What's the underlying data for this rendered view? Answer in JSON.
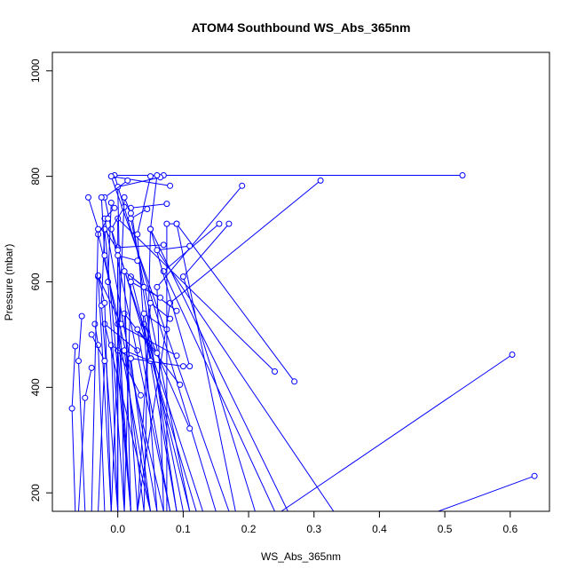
{
  "chart_data": {
    "type": "line",
    "title": "ATOM4 Southbound WS_Abs_365nm",
    "xlabel": "WS_Abs_365nm",
    "ylabel": "Pressure (mbar)",
    "xlim": [
      -0.1,
      0.66
    ],
    "ylim": [
      1035,
      165
    ],
    "y_reversed": true,
    "x_ticks": [
      "0.0",
      "0.1",
      "0.2",
      "0.3",
      "0.4",
      "0.5",
      "0.6"
    ],
    "y_ticks": [
      "200",
      "400",
      "600",
      "800",
      "1000"
    ],
    "grid": false,
    "series_color": "#0000ff",
    "series": [
      {
        "values": [
          [
            0.637,
            232
          ],
          [
            0.49,
            165
          ],
          [
            0.14,
            165
          ]
        ]
      },
      {
        "values": [
          [
            0.603,
            462
          ],
          [
            0.25,
            165
          ]
        ]
      },
      {
        "values": [
          [
            0.527,
            802
          ],
          [
            0.07,
            802
          ],
          [
            -0.005,
            802
          ],
          [
            0.15,
            165
          ]
        ]
      },
      {
        "values": [
          [
            0.31,
            792
          ],
          [
            0.08,
            560
          ],
          [
            0.03,
            165
          ]
        ]
      },
      {
        "values": [
          [
            0.27,
            411
          ],
          [
            0.09,
            710
          ],
          [
            0.18,
            165
          ]
        ]
      },
      {
        "values": [
          [
            0.24,
            430
          ],
          [
            0.0,
            720
          ],
          [
            0.0,
            165
          ]
        ]
      },
      {
        "values": [
          [
            0.19,
            782
          ],
          [
            0.06,
            590
          ],
          [
            0.07,
            165
          ]
        ]
      },
      {
        "values": [
          [
            0.17,
            710
          ],
          [
            0.1,
            610
          ],
          [
            0.21,
            165
          ]
        ]
      },
      {
        "values": [
          [
            0.155,
            710
          ],
          [
            0.07,
            620
          ],
          [
            0.24,
            165
          ]
        ]
      },
      {
        "values": [
          [
            0.11,
            322
          ],
          [
            0.04,
            520
          ],
          [
            0.09,
            165
          ]
        ]
      },
      {
        "values": [
          [
            0.11,
            440
          ],
          [
            0.05,
            700
          ],
          [
            0.26,
            165
          ]
        ]
      },
      {
        "values": [
          [
            0.095,
            405
          ],
          [
            0.01,
            540
          ],
          [
            0.03,
            165
          ]
        ]
      },
      {
        "values": [
          [
            0.09,
            545
          ],
          [
            0.02,
            610
          ],
          [
            0.11,
            165
          ]
        ]
      },
      {
        "values": [
          [
            0.11,
            668
          ],
          [
            0.06,
            660
          ],
          [
            0.33,
            165
          ]
        ]
      },
      {
        "values": [
          [
            0.09,
            460
          ],
          [
            0.0,
            520
          ],
          [
            0.02,
            165
          ]
        ]
      },
      {
        "values": [
          [
            0.07,
            670
          ],
          [
            0.0,
            665
          ],
          [
            0.12,
            165
          ]
        ]
      },
      {
        "values": [
          [
            0.08,
            782
          ],
          [
            -0.01,
            800
          ],
          [
            0.17,
            165
          ]
        ]
      },
      {
        "values": [
          [
            0.075,
            748
          ],
          [
            0.02,
            740
          ],
          [
            0.09,
            165
          ]
        ]
      },
      {
        "values": [
          [
            0.065,
            798
          ],
          [
            0.0,
            780
          ],
          [
            0.01,
            165
          ]
        ]
      },
      {
        "values": [
          [
            0.06,
            802
          ],
          [
            0.05,
            700
          ],
          [
            0.04,
            165
          ]
        ]
      },
      {
        "values": [
          [
            0.05,
            800
          ],
          [
            0.03,
            690
          ],
          [
            0.06,
            165
          ]
        ]
      },
      {
        "values": [
          [
            0.045,
            738
          ],
          [
            0.02,
            720
          ],
          [
            0.11,
            165
          ]
        ]
      },
      {
        "values": [
          [
            0.035,
            385
          ],
          [
            0.0,
            470
          ],
          [
            0.02,
            165
          ]
        ]
      },
      {
        "values": [
          [
            0.03,
            470
          ],
          [
            -0.02,
            520
          ],
          [
            0.05,
            165
          ]
        ]
      },
      {
        "values": [
          [
            0.02,
            455
          ],
          [
            -0.01,
            480
          ],
          [
            0.0,
            165
          ]
        ]
      },
      {
        "values": [
          [
            0.015,
            792
          ],
          [
            -0.02,
            760
          ],
          [
            0.08,
            165
          ]
        ]
      },
      {
        "values": [
          [
            0.01,
            742
          ],
          [
            -0.01,
            700
          ],
          [
            0.13,
            165
          ]
        ]
      },
      {
        "values": [
          [
            0.005,
            520
          ],
          [
            -0.03,
            610
          ],
          [
            -0.01,
            165
          ]
        ]
      },
      {
        "values": [
          [
            0.0,
            660
          ],
          [
            -0.02,
            700
          ],
          [
            0.02,
            165
          ]
        ]
      },
      {
        "values": [
          [
            -0.005,
            740
          ],
          [
            -0.02,
            720
          ],
          [
            0.06,
            165
          ]
        ]
      },
      {
        "values": [
          [
            -0.01,
            750
          ],
          [
            -0.015,
            600
          ],
          [
            0.01,
            165
          ]
        ]
      },
      {
        "values": [
          [
            -0.015,
            720
          ],
          [
            -0.03,
            690
          ],
          [
            0.07,
            165
          ]
        ]
      },
      {
        "values": [
          [
            -0.02,
            700
          ],
          [
            -0.025,
            555
          ],
          [
            0.0,
            165
          ]
        ]
      },
      {
        "values": [
          [
            -0.025,
            760
          ],
          [
            -0.02,
            650
          ],
          [
            0.05,
            165
          ]
        ]
      },
      {
        "values": [
          [
            -0.03,
            612
          ],
          [
            -0.02,
            560
          ],
          [
            -0.01,
            165
          ]
        ]
      },
      {
        "values": [
          [
            -0.035,
            520
          ],
          [
            -0.03,
            480
          ],
          [
            -0.02,
            165
          ]
        ]
      },
      {
        "values": [
          [
            -0.04,
            500
          ],
          [
            -0.02,
            450
          ],
          [
            -0.03,
            165
          ]
        ]
      },
      {
        "values": [
          [
            -0.045,
            760
          ],
          [
            -0.03,
            700
          ],
          [
            -0.04,
            165
          ]
        ]
      },
      {
        "values": [
          [
            -0.04,
            437
          ],
          [
            -0.05,
            380
          ],
          [
            -0.06,
            165
          ]
        ]
      },
      {
        "values": [
          [
            -0.055,
            535
          ],
          [
            -0.06,
            450
          ],
          [
            -0.05,
            165
          ]
        ]
      },
      {
        "values": [
          [
            -0.065,
            478
          ],
          [
            -0.07,
            360
          ],
          [
            -0.065,
            165
          ]
        ]
      },
      {
        "values": [
          [
            0.05,
            450
          ],
          [
            0.01,
            470
          ],
          [
            0.04,
            165
          ]
        ]
      },
      {
        "values": [
          [
            0.06,
            465
          ],
          [
            0.03,
            510
          ],
          [
            0.08,
            165
          ]
        ]
      },
      {
        "values": [
          [
            0.075,
            510
          ],
          [
            0.04,
            540
          ],
          [
            0.1,
            165
          ]
        ]
      },
      {
        "values": [
          [
            0.08,
            530
          ],
          [
            0.05,
            560
          ],
          [
            0.03,
            165
          ]
        ]
      },
      {
        "values": [
          [
            0.065,
            570
          ],
          [
            0.02,
            600
          ],
          [
            0.01,
            165
          ]
        ]
      },
      {
        "values": [
          [
            0.04,
            590
          ],
          [
            0.01,
            620
          ],
          [
            0.02,
            165
          ]
        ]
      },
      {
        "values": [
          [
            0.03,
            640
          ],
          [
            0.0,
            650
          ],
          [
            0.0,
            165
          ]
        ]
      },
      {
        "values": [
          [
            0.02,
            730
          ],
          [
            0.01,
            760
          ],
          [
            -0.01,
            165
          ]
        ]
      },
      {
        "values": [
          [
            0.1,
            440
          ],
          [
            0.02,
            455
          ],
          [
            0.05,
            165
          ]
        ]
      },
      {
        "values": [
          [
            0.09,
            710
          ],
          [
            0.075,
            710
          ],
          [
            0.075,
            165
          ]
        ]
      }
    ]
  }
}
